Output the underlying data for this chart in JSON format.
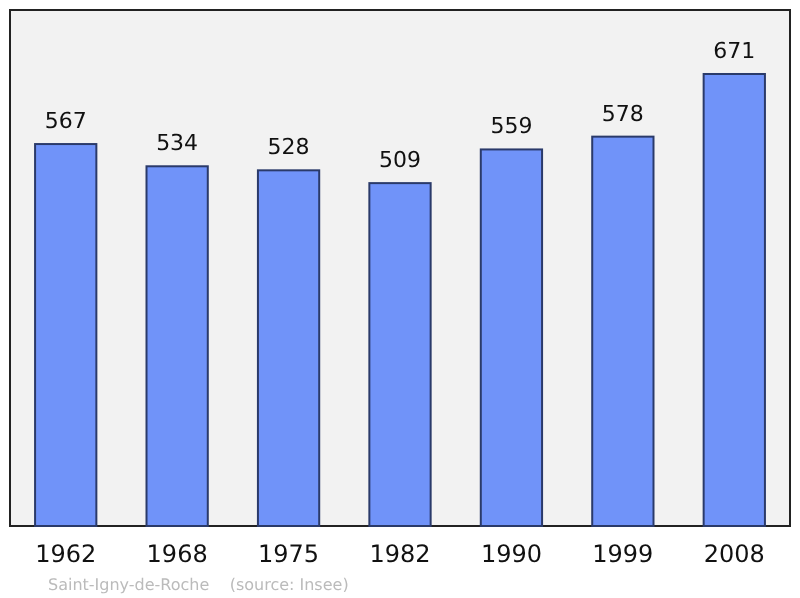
{
  "chart_data": {
    "type": "bar",
    "categories": [
      "1962",
      "1968",
      "1975",
      "1982",
      "1990",
      "1999",
      "2008"
    ],
    "values": [
      567,
      534,
      528,
      509,
      559,
      578,
      671
    ],
    "color": "#7093f9",
    "ylim": [
      0,
      766
    ],
    "data_labels": true,
    "annotations": [
      "Saint-Igny-de-Roche    (source: Insee)"
    ]
  }
}
